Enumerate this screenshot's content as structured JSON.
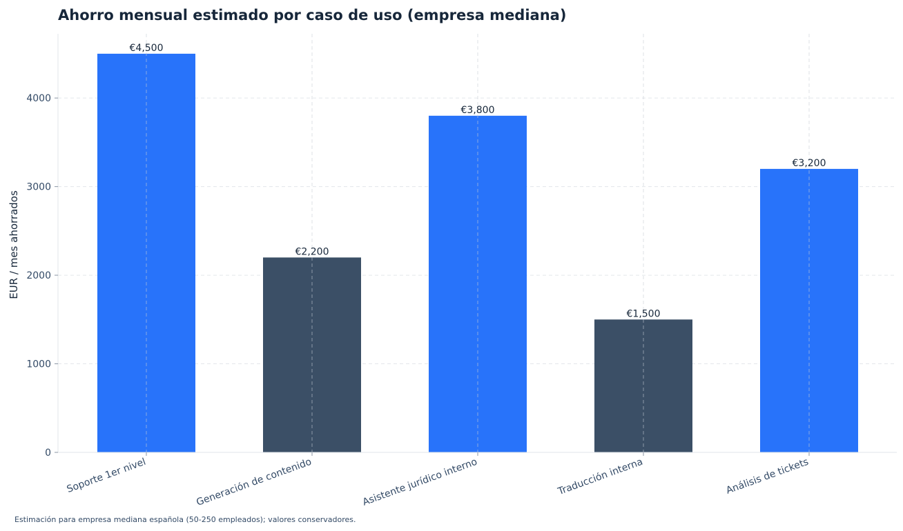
{
  "chart_data": {
    "type": "bar",
    "title": "Ahorro mensual estimado por caso de uso (empresa mediana)",
    "ylabel": "EUR / mes ahorrados",
    "xlabel": "",
    "categories": [
      "Soporte 1er nivel",
      "Generación de contenido",
      "Asistente jurídico interno",
      "Traducción interna",
      "Análisis de tickets"
    ],
    "values": [
      4500,
      2200,
      3800,
      1500,
      3200
    ],
    "value_labels": [
      "€4,500",
      "€2,200",
      "€3,800",
      "€1,500",
      "€3,200"
    ],
    "ylim": [
      0,
      4725
    ],
    "yticks": [
      0,
      1000,
      2000,
      3000,
      4000
    ],
    "bar_colors": [
      "#2873fa",
      "#3b4f66",
      "#2873fa",
      "#3b4f66",
      "#2873fa"
    ],
    "colors": {
      "highlight": "#2873fa",
      "base": "#3b4f66"
    },
    "grid": true,
    "footnote": "Estimación para empresa mediana española (50-250 empleados); valores conservadores."
  }
}
